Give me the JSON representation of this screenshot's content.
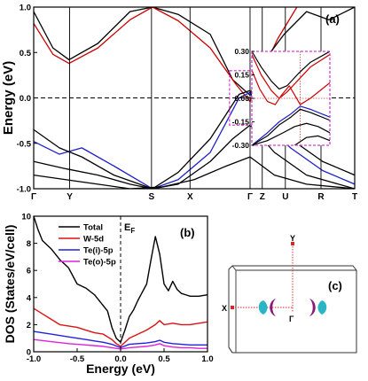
{
  "chart_data": [
    {
      "type": "line",
      "panel_label": "(a)",
      "ylabel": "Energy (eV)",
      "ylim": [
        -1.0,
        1.0
      ],
      "yticks": [
        "1.0",
        "0.5",
        "0.0",
        "-0.5",
        "-1.0"
      ],
      "kpoints": [
        {
          "label": "Γ",
          "pos": 0.0
        },
        {
          "label": "Y",
          "pos": 0.112
        },
        {
          "label": "S",
          "pos": 0.367
        },
        {
          "label": "X",
          "pos": 0.487
        },
        {
          "label": "Γ",
          "pos": 0.674
        },
        {
          "label": "Z",
          "pos": 0.712
        },
        {
          "label": "U",
          "pos": 0.784
        },
        {
          "label": "R",
          "pos": 0.895
        },
        {
          "label": "T",
          "pos": 1.0
        }
      ],
      "bands": [
        {
          "color": "#000000",
          "x": [
            0,
            0.06,
            0.11,
            0.2,
            0.3,
            0.37,
            0.45,
            0.55,
            0.62,
            0.674
          ],
          "y": [
            0.95,
            0.55,
            0.42,
            0.6,
            0.95,
            1.0,
            0.92,
            0.7,
            0.2,
            0.03
          ]
        },
        {
          "color": "#cc0000",
          "x": [
            0,
            0.06,
            0.11,
            0.2,
            0.3,
            0.37,
            0.45,
            0.55,
            0.63,
            0.674,
            0.71,
            0.76,
            0.82
          ],
          "y": [
            0.82,
            0.48,
            0.38,
            0.55,
            0.86,
            1.0,
            0.85,
            0.55,
            0.15,
            -0.04,
            0.28,
            0.65,
            1.0
          ]
        },
        {
          "color": "#000000",
          "x": [
            0.674,
            0.72,
            0.78,
            0.85,
            0.92,
            1.0
          ],
          "y": [
            0.03,
            0.42,
            0.7,
            0.95,
            0.86,
            1.0
          ]
        },
        {
          "color": "#1f1fcc",
          "x": [
            0,
            0.08,
            0.15,
            0.25,
            0.37,
            0.45,
            0.55,
            0.64,
            0.674,
            0.72,
            0.8,
            0.9,
            1.0
          ],
          "y": [
            -0.48,
            -0.62,
            -0.55,
            -0.75,
            -1.0,
            -0.9,
            -0.6,
            0.0,
            0.06,
            -0.28,
            -0.55,
            -0.8,
            -0.95
          ]
        },
        {
          "color": "#000000",
          "x": [
            0,
            0.08,
            0.15,
            0.25,
            0.37,
            0.45,
            0.55,
            0.64,
            0.674,
            0.72,
            0.8,
            0.9,
            1.0
          ],
          "y": [
            -0.35,
            -0.55,
            -0.65,
            -0.85,
            -1.0,
            -0.82,
            -0.45,
            0.04,
            0.08,
            -0.22,
            -0.45,
            -0.7,
            -0.85
          ]
        },
        {
          "color": "#000000",
          "x": [
            0,
            0.1,
            0.2,
            0.3,
            0.37,
            0.45,
            0.55,
            0.62,
            0.674,
            0.75,
            0.85,
            1.0
          ],
          "y": [
            -0.7,
            -0.78,
            -0.85,
            -0.95,
            -1.0,
            -0.95,
            -0.7,
            -0.45,
            -0.3,
            -0.6,
            -0.85,
            -1.0
          ]
        },
        {
          "color": "#000000",
          "x": [
            0,
            0.1,
            0.2,
            0.3,
            0.4,
            0.5,
            0.6,
            0.674,
            0.75,
            0.85,
            1.0
          ],
          "y": [
            -0.85,
            -0.9,
            -0.95,
            -1.0,
            -0.98,
            -0.9,
            -0.75,
            -0.65,
            -0.85,
            -0.95,
            -1.0
          ]
        }
      ]
    },
    {
      "type": "line",
      "panel_label": "inset",
      "ylim": [
        -0.3,
        0.3
      ],
      "yticks": [
        "0.30",
        "0.15",
        "0.00",
        "-0.15",
        "-0.30"
      ],
      "series": [
        {
          "color": "#000000",
          "x": [
            0,
            0.12,
            0.25,
            0.35,
            0.45,
            0.6,
            0.75,
            1.0
          ],
          "y": [
            0.3,
            0.2,
            0.11,
            0.06,
            0.08,
            0.16,
            0.23,
            0.3
          ]
        },
        {
          "color": "#cc0000",
          "x": [
            0,
            0.12,
            0.25,
            0.35,
            0.45,
            0.6,
            0.75,
            1.0
          ],
          "y": [
            0.28,
            0.15,
            0.05,
            0.0,
            0.04,
            0.12,
            0.2,
            0.28
          ]
        },
        {
          "color": "#cc0000",
          "x": [
            0,
            0.1,
            0.2,
            0.3,
            0.38,
            0.48,
            0.55,
            0.62,
            0.75,
            1.0
          ],
          "y": [
            0.18,
            0.06,
            -0.02,
            -0.04,
            0.02,
            0.08,
            0.02,
            -0.04,
            0.0,
            0.1
          ]
        },
        {
          "color": "#1f1fcc",
          "x": [
            0,
            0.2,
            0.35,
            0.5,
            0.62,
            0.75,
            1.0
          ],
          "y": [
            -0.3,
            -0.22,
            -0.15,
            -0.1,
            -0.05,
            -0.07,
            -0.12
          ]
        },
        {
          "color": "#000000",
          "x": [
            0,
            0.2,
            0.35,
            0.5,
            0.62,
            0.75,
            1.0
          ],
          "y": [
            -0.3,
            -0.24,
            -0.17,
            -0.12,
            -0.07,
            -0.09,
            -0.14
          ]
        },
        {
          "color": "#000000",
          "x": [
            0,
            0.2,
            0.4,
            0.55,
            0.7,
            0.85,
            1.0
          ],
          "y": [
            -0.3,
            -0.27,
            -0.22,
            -0.18,
            -0.16,
            -0.18,
            -0.22
          ]
        },
        {
          "color": "#000000",
          "x": [
            0.55,
            0.7,
            0.85,
            1.0
          ],
          "y": [
            -0.3,
            -0.25,
            -0.24,
            -0.27
          ]
        }
      ]
    },
    {
      "type": "line",
      "panel_label": "(b)",
      "xlabel": "Energy (eV)",
      "ylabel": "DOS (States/eV/cell)",
      "xlim": [
        -1.0,
        1.0
      ],
      "ylim": [
        0,
        10
      ],
      "xticks": [
        "-1.0",
        "-0.5",
        "0.0",
        "0.5",
        "1.0"
      ],
      "yticks": [
        "0",
        "2",
        "4",
        "6",
        "8",
        "10"
      ],
      "fermi_label": "E",
      "fermi_sub": "F",
      "series": [
        {
          "name": "Total",
          "color": "#000000",
          "x": [
            -1.0,
            -0.95,
            -0.9,
            -0.8,
            -0.7,
            -0.6,
            -0.5,
            -0.4,
            -0.3,
            -0.2,
            -0.15,
            -0.1,
            -0.05,
            0.0,
            0.05,
            0.1,
            0.15,
            0.2,
            0.25,
            0.3,
            0.35,
            0.4,
            0.45,
            0.5,
            0.55,
            0.6,
            0.65,
            0.7,
            0.75,
            0.8,
            0.9,
            1.0
          ],
          "y": [
            10,
            9.0,
            8.2,
            7.6,
            6.8,
            6.2,
            5.0,
            4.7,
            4.2,
            3.4,
            3.0,
            1.8,
            1.0,
            0.7,
            1.6,
            2.6,
            3.1,
            3.8,
            4.4,
            5.0,
            6.8,
            8.5,
            7.2,
            5.0,
            4.5,
            5.2,
            4.6,
            4.3,
            4.2,
            4.1,
            4.1,
            4.2
          ]
        },
        {
          "name": "W-5d",
          "color": "#dd1111",
          "x": [
            -1.0,
            -0.9,
            -0.8,
            -0.7,
            -0.6,
            -0.5,
            -0.4,
            -0.3,
            -0.2,
            -0.1,
            -0.05,
            0.0,
            0.05,
            0.1,
            0.2,
            0.3,
            0.4,
            0.45,
            0.5,
            0.6,
            0.7,
            0.8,
            0.9,
            1.0
          ],
          "y": [
            3.2,
            2.8,
            2.4,
            2.0,
            1.9,
            1.8,
            1.6,
            1.4,
            1.3,
            0.9,
            0.6,
            0.4,
            0.7,
            1.0,
            1.3,
            1.6,
            2.0,
            2.3,
            2.0,
            2.1,
            2.0,
            2.0,
            2.1,
            2.2
          ]
        },
        {
          "name": "Te(i)-5p",
          "color": "#2222dd",
          "x": [
            -1.0,
            -0.8,
            -0.6,
            -0.5,
            -0.4,
            -0.3,
            -0.2,
            -0.1,
            0.0,
            0.1,
            0.2,
            0.3,
            0.4,
            0.45,
            0.5,
            0.6,
            0.7,
            0.8,
            0.9,
            1.0
          ],
          "y": [
            1.5,
            1.3,
            1.1,
            1.0,
            0.9,
            0.8,
            0.7,
            0.55,
            0.3,
            0.55,
            0.6,
            0.65,
            0.75,
            0.85,
            0.7,
            0.6,
            0.55,
            0.5,
            0.5,
            0.5
          ]
        },
        {
          "name": "Te(o)-5p",
          "color": "#dd22dd",
          "x": [
            -1.0,
            -0.8,
            -0.6,
            -0.5,
            -0.4,
            -0.3,
            -0.2,
            -0.1,
            0.0,
            0.1,
            0.2,
            0.3,
            0.4,
            0.45,
            0.5,
            0.6,
            0.7,
            0.8,
            0.9,
            1.0
          ],
          "y": [
            0.9,
            0.75,
            0.6,
            0.55,
            0.5,
            0.45,
            0.4,
            0.3,
            0.2,
            0.3,
            0.35,
            0.4,
            0.5,
            0.6,
            0.45,
            0.35,
            0.3,
            0.3,
            0.25,
            0.25
          ]
        }
      ]
    },
    {
      "type": "diagram",
      "panel_label": "(c)",
      "labels": {
        "y": "Y",
        "x": "X",
        "gamma": "Γ"
      }
    }
  ]
}
